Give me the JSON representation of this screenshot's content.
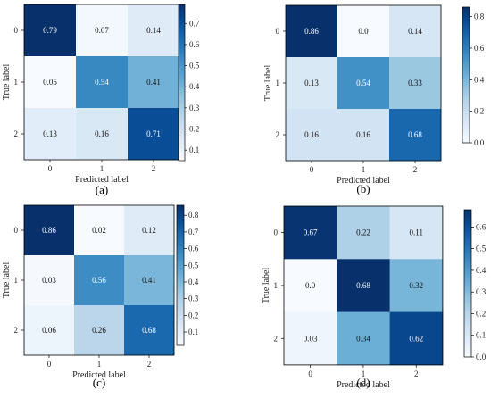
{
  "chart_data": [
    {
      "type": "heatmap",
      "panel_label": "(a)",
      "x_categories": [
        "0",
        "1",
        "2"
      ],
      "y_categories": [
        "0",
        "1",
        "2"
      ],
      "xlabel": "Predicted label",
      "ylabel": "True label",
      "values": [
        [
          0.79,
          0.07,
          0.14
        ],
        [
          0.05,
          0.54,
          0.41
        ],
        [
          0.13,
          0.16,
          0.71
        ]
      ],
      "value_labels": [
        [
          "0.79",
          "0.07",
          "0.14"
        ],
        [
          "0.05",
          "0.54",
          "0.41"
        ],
        [
          "0.13",
          "0.16",
          "0.71"
        ]
      ],
      "colorbar": {
        "min": 0.05,
        "max": 0.79,
        "ticks": [
          "0.1",
          "0.2",
          "0.3",
          "0.4",
          "0.5",
          "0.6",
          "0.7"
        ]
      },
      "colormap": "Blues"
    },
    {
      "type": "heatmap",
      "panel_label": "(b)",
      "x_categories": [
        "0",
        "1",
        "2"
      ],
      "y_categories": [
        "0",
        "1",
        "2"
      ],
      "xlabel": "Predicted label",
      "ylabel": "True label",
      "values": [
        [
          0.86,
          0.0,
          0.14
        ],
        [
          0.13,
          0.54,
          0.33
        ],
        [
          0.16,
          0.16,
          0.68
        ]
      ],
      "value_labels": [
        [
          "0.86",
          "0.0",
          "0.14"
        ],
        [
          "0.13",
          "0.54",
          "0.33"
        ],
        [
          "0.16",
          "0.16",
          "0.68"
        ]
      ],
      "colorbar": {
        "min": 0.0,
        "max": 0.86,
        "ticks": [
          "0.0",
          "0.2",
          "0.4",
          "0.6",
          "0.8"
        ]
      },
      "colormap": "Blues"
    },
    {
      "type": "heatmap",
      "panel_label": "(c)",
      "x_categories": [
        "0",
        "1",
        "2"
      ],
      "y_categories": [
        "0",
        "1",
        "2"
      ],
      "xlabel": "Predicted label",
      "ylabel": "True label",
      "values": [
        [
          0.86,
          0.02,
          0.12
        ],
        [
          0.03,
          0.56,
          0.41
        ],
        [
          0.06,
          0.26,
          0.68
        ]
      ],
      "value_labels": [
        [
          "0.86",
          "0.02",
          "0.12"
        ],
        [
          "0.03",
          "0.56",
          "0.41"
        ],
        [
          "0.06",
          "0.26",
          "0.68"
        ]
      ],
      "colorbar": {
        "min": 0.02,
        "max": 0.86,
        "ticks": [
          "0.1",
          "0.2",
          "0.3",
          "0.4",
          "0.5",
          "0.6",
          "0.7",
          "0.8"
        ]
      },
      "colormap": "Blues"
    },
    {
      "type": "heatmap",
      "panel_label": "(d)",
      "x_categories": [
        "0",
        "1",
        "2"
      ],
      "y_categories": [
        "0",
        "1",
        "2"
      ],
      "xlabel": "Predicted label",
      "ylabel": "True label",
      "values": [
        [
          0.67,
          0.22,
          0.11
        ],
        [
          0.0,
          0.68,
          0.32
        ],
        [
          0.03,
          0.34,
          0.62
        ]
      ],
      "value_labels": [
        [
          "0.67",
          "0.22",
          "0.11"
        ],
        [
          "0.0",
          "0.68",
          "0.32"
        ],
        [
          "0.03",
          "0.34",
          "0.62"
        ]
      ],
      "colorbar": {
        "min": 0.0,
        "max": 0.68,
        "ticks": [
          "0.0",
          "0.1",
          "0.2",
          "0.3",
          "0.4",
          "0.5",
          "0.6"
        ]
      },
      "colormap": "Blues"
    }
  ]
}
